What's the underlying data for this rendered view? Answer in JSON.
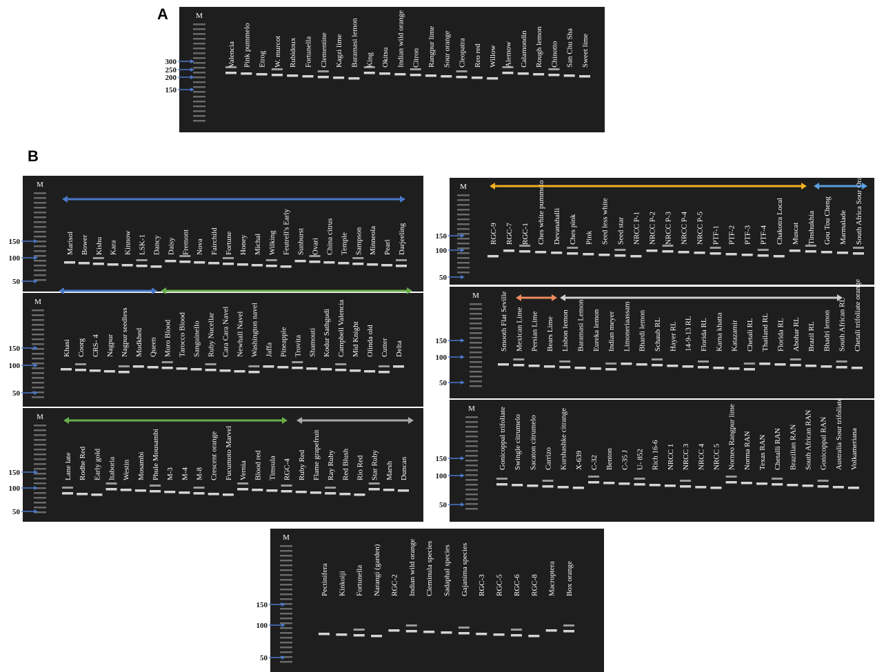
{
  "figure": {
    "panel_labels": [
      "A",
      "B"
    ],
    "gels": [
      {
        "marker_lane": "M",
        "size_markers": [
          300,
          250,
          200,
          150
        ],
        "lanes": [
          "Valencia",
          "Pink pummelo",
          "Etrog",
          "W. murcot",
          "Rubidoux",
          "Fortunella",
          "Clementine",
          "Kagzi lime",
          "Baramasi lemon",
          "King",
          "Okitsu",
          "Indian wild orange",
          "Citron",
          "Rangpur lime",
          "Sour orange",
          "Cleopatra",
          "Reo red",
          "Willow",
          "Alemow",
          "Calamondin",
          "Rough lemon",
          "Chinotto",
          "San Chu Sha",
          "Sweet lime"
        ]
      },
      {
        "marker_lane": "M",
        "size_markers": [
          150,
          100,
          50
        ],
        "lanes": [
          "Marisol",
          "Bower",
          "Kishu",
          "Kara",
          "Kinnow",
          "LSK-1",
          "Dancy",
          "Daisy",
          "Fremont",
          "Nova",
          "Fairchild",
          "Fortune",
          "Honey",
          "Michal",
          "Wilking",
          "Feutrell's Early",
          "Sunburst",
          "Ovari",
          "China citrus",
          "Temple",
          "Sampson",
          "Minneola",
          "Pearl",
          "Darjeeling"
        ]
      },
      {
        "marker_lane": "M",
        "size_markers": [
          150,
          100,
          50
        ],
        "lanes": [
          "Khasi",
          "Coorg",
          "CRS- 4",
          "Nagpur",
          "Nagpur seedless",
          "Mudkhed",
          "Queen",
          "Moro Blood",
          "Tarocco Blood",
          "Sanguinello",
          "Ruby Nucellar",
          "Cara Cara Navel",
          "Newhall Navel",
          "Washington navel",
          "Jaffa",
          "Pineapple",
          "Trovita",
          "Shamouti",
          "Kodur Sathgudi",
          "Campbell Valencia",
          "Mid Knight",
          "Olinda old",
          "Cutter",
          "Delta"
        ]
      },
      {
        "marker_lane": "M",
        "size_markers": [
          150,
          100,
          50
        ],
        "lanes": [
          "Lane late",
          "Rodhe Red",
          "Early gold",
          "Itaboria",
          "Westin",
          "Mosambi",
          "Phule Mousambi",
          "M-3",
          "M-4",
          "M-8",
          "Crescent orange",
          "Fucumoto Marvel",
          "Vernia",
          "Blood red",
          "Timsula",
          "RGC-4",
          "Ruby Red",
          "Flame grapefruit",
          "Ray Ruby",
          "Red Blush",
          "Rio Red",
          "Star Ruby",
          "Marsh",
          "Duncan"
        ]
      },
      {
        "marker_lane": "M",
        "size_markers": [
          150,
          100,
          50
        ],
        "lanes": [
          "RGC-9",
          "RGC-7",
          "RGC-1",
          "Ches white pummelo",
          "Devanahalli",
          "Ches pink",
          "Pink",
          "Seed less white",
          "Seed star",
          "NRCC P-1",
          "NRCC P-2",
          "NRCC P-3",
          "NRCC P-4",
          "NRCC P-5",
          "PTF-1",
          "PTF-2",
          "PTF-3",
          "PTF-4",
          "Chakotra Local",
          "Muscat",
          "Tinshukhia",
          "Gou Tou Cheng",
          "Marmalade",
          "South Africa Sour Orange"
        ]
      },
      {
        "marker_lane": "M",
        "size_markers": [
          150,
          100,
          50
        ],
        "lanes": [
          "Smooth Flat Seville",
          "Mexican Lime",
          "Persian Lime",
          "Bears Lime",
          "Lisbon lemon",
          "Baramasi Lemon",
          "Eureka lemon",
          "Indian meyer",
          "Limoneriaassam",
          "Bhardi lemon",
          "Schaub RL",
          "Hayer RL",
          "14-9-13 RL",
          "Florida RL",
          "Karna khatta",
          "Katazamir",
          "Chetali RL",
          "Thailand RL",
          "Florida RL",
          "Abohar RL",
          "Brazil RL",
          "Bhadri lemon",
          "South African RL",
          "Chetali trifoliate orange"
        ]
      },
      {
        "marker_lane": "M",
        "size_markers": [
          150,
          100,
          50
        ],
        "lanes": [
          "Gonicoppal trifoliate",
          "Swingle citrumelo",
          "Sacaton citrumelo",
          "Carrizo",
          "Kurshashke citrange",
          "X-639",
          "C-32",
          "Benton",
          "C-35 J",
          "U- 852",
          "Rich 16-6",
          "NRCC 1",
          "NRCC 3",
          "NRCC 4",
          "NRCC 5",
          "Norneo Rangpur lime",
          "Norma RAN",
          "Texas RAN",
          "Chetalli RAN",
          "Brazilian RAN",
          "South African RAN",
          "Gonicoppal RAN",
          "Australia Sour trifoliate",
          "Volkameriana"
        ]
      },
      {
        "marker_lane": "M",
        "size_markers": [
          150,
          100,
          50
        ],
        "lanes": [
          "Pectinifera",
          "Kinkoiji",
          "Fortunella",
          "Narangi (garden)",
          "RGC-2",
          "Indian wild orange",
          "Cleminula species",
          "Sadaphal species",
          "Gajanima species",
          "RGC-3",
          "RGC-5",
          "RGC-6",
          "RGC-8",
          "Macroptera",
          "Box orange"
        ]
      }
    ]
  }
}
